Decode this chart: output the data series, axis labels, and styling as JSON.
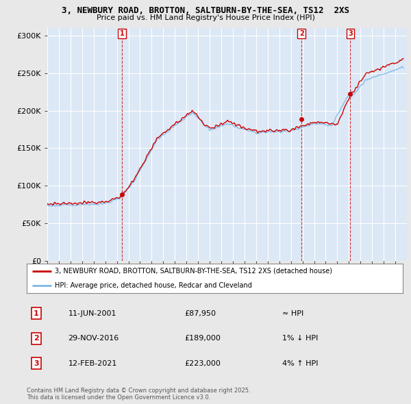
{
  "title_line1": "3, NEWBURY ROAD, BROTTON, SALTBURN-BY-THE-SEA, TS12  2XS",
  "title_line2": "Price paid vs. HM Land Registry's House Price Index (HPI)",
  "ylabel_ticks": [
    "£0",
    "£50K",
    "£100K",
    "£150K",
    "£200K",
    "£250K",
    "£300K"
  ],
  "ytick_vals": [
    0,
    50000,
    100000,
    150000,
    200000,
    250000,
    300000
  ],
  "ylim": [
    0,
    310000
  ],
  "xlim_start": 1995.0,
  "xlim_end": 2026.0,
  "hpi_color": "#7ab8e8",
  "price_color": "#cc0000",
  "background_color": "#e8e8e8",
  "plot_bg_color": "#dce8f5",
  "grid_color": "#ffffff",
  "purchases": [
    {
      "date_num": 2001.44,
      "price": 87950,
      "label": "1"
    },
    {
      "date_num": 2016.92,
      "price": 189000,
      "label": "2"
    },
    {
      "date_num": 2021.12,
      "price": 223000,
      "label": "3"
    }
  ],
  "legend_entries": [
    "3, NEWBURY ROAD, BROTTON, SALTBURN-BY-THE-SEA, TS12 2XS (detached house)",
    "HPI: Average price, detached house, Redcar and Cleveland"
  ],
  "table_rows": [
    {
      "num": "1",
      "date": "11-JUN-2001",
      "price": "£87,950",
      "hpi": "≈ HPI"
    },
    {
      "num": "2",
      "date": "29-NOV-2016",
      "price": "£189,000",
      "hpi": "1% ↓ HPI"
    },
    {
      "num": "3",
      "date": "12-FEB-2021",
      "price": "£223,000",
      "hpi": "4% ↑ HPI"
    }
  ],
  "footer": "Contains HM Land Registry data © Crown copyright and database right 2025.\nThis data is licensed under the Open Government Licence v3.0."
}
